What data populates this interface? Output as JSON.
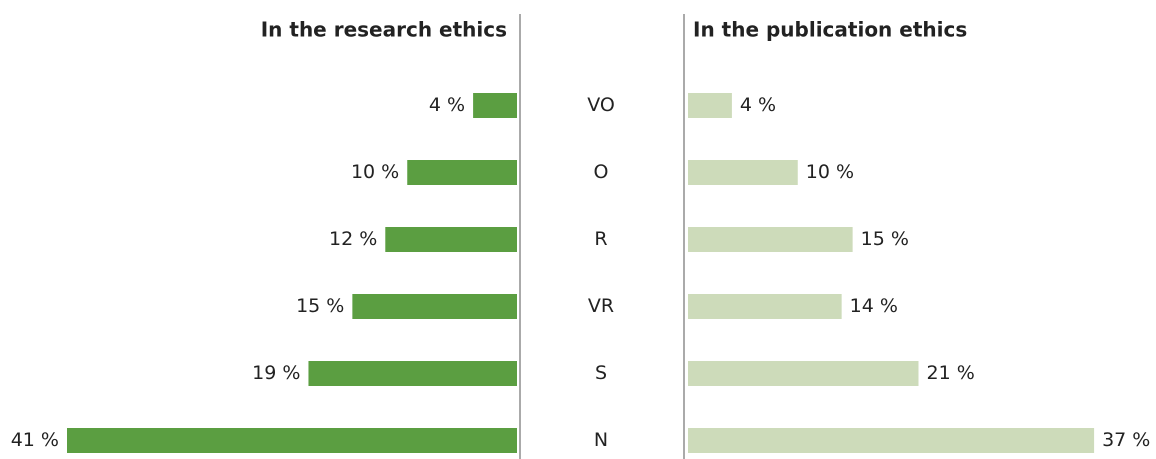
{
  "chart_data": {
    "type": "bar",
    "categories": [
      "VO",
      "O",
      "R",
      "VR",
      "S",
      "N"
    ],
    "series": [
      {
        "name": "In the research ethics",
        "color": "#5b9e41",
        "values": [
          4,
          10,
          12,
          15,
          19,
          41
        ],
        "value_labels": [
          "4 %",
          "10 %",
          "12 %",
          "15 %",
          "19 %",
          "41 %"
        ]
      },
      {
        "name": "In the publication ethics",
        "color": "#cddbba",
        "values": [
          4,
          10,
          15,
          14,
          21,
          37
        ],
        "value_labels": [
          "4 %",
          "10 %",
          "15 %",
          "14 %",
          "21 %",
          "37 %"
        ]
      }
    ]
  }
}
